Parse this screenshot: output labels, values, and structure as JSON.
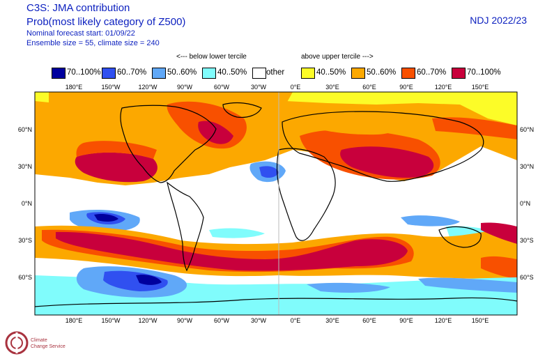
{
  "header": {
    "title": "C3S: JMA contribution",
    "subtitle": "Prob(most likely category of Z500)",
    "forecast_start": "Nominal forecast start: 01/09/22",
    "ensemble": "Ensemble size = 55, climate size = 240",
    "season": "NDJ 2022/23"
  },
  "legend": {
    "below_note": "<--- below lower tercile",
    "above_note": "above upper tercile --->",
    "items": [
      {
        "label": "70..100%",
        "color": "#00009e"
      },
      {
        "label": "60..70%",
        "color": "#3050f0"
      },
      {
        "label": "50..60%",
        "color": "#60a8f8"
      },
      {
        "label": "40..50%",
        "color": "#80fcfc"
      },
      {
        "label": "other",
        "color": "#ffffff"
      },
      {
        "label": "40..50%",
        "color": "#fcfc28"
      },
      {
        "label": "50..60%",
        "color": "#fca800"
      },
      {
        "label": "60..70%",
        "color": "#f85000"
      },
      {
        "label": "70..100%",
        "color": "#c8003c"
      }
    ]
  },
  "axes": {
    "lon_labels": [
      "180°E",
      "150°W",
      "120°W",
      "90°W",
      "60°W",
      "30°W",
      "0°E",
      "30°E",
      "60°E",
      "90°E",
      "120°E",
      "150°E"
    ],
    "lat_labels": [
      "60°N",
      "30°N",
      "0°N",
      "30°S",
      "60°S"
    ]
  },
  "logo": {
    "line1": "Climate",
    "line2": "Change Service"
  }
}
